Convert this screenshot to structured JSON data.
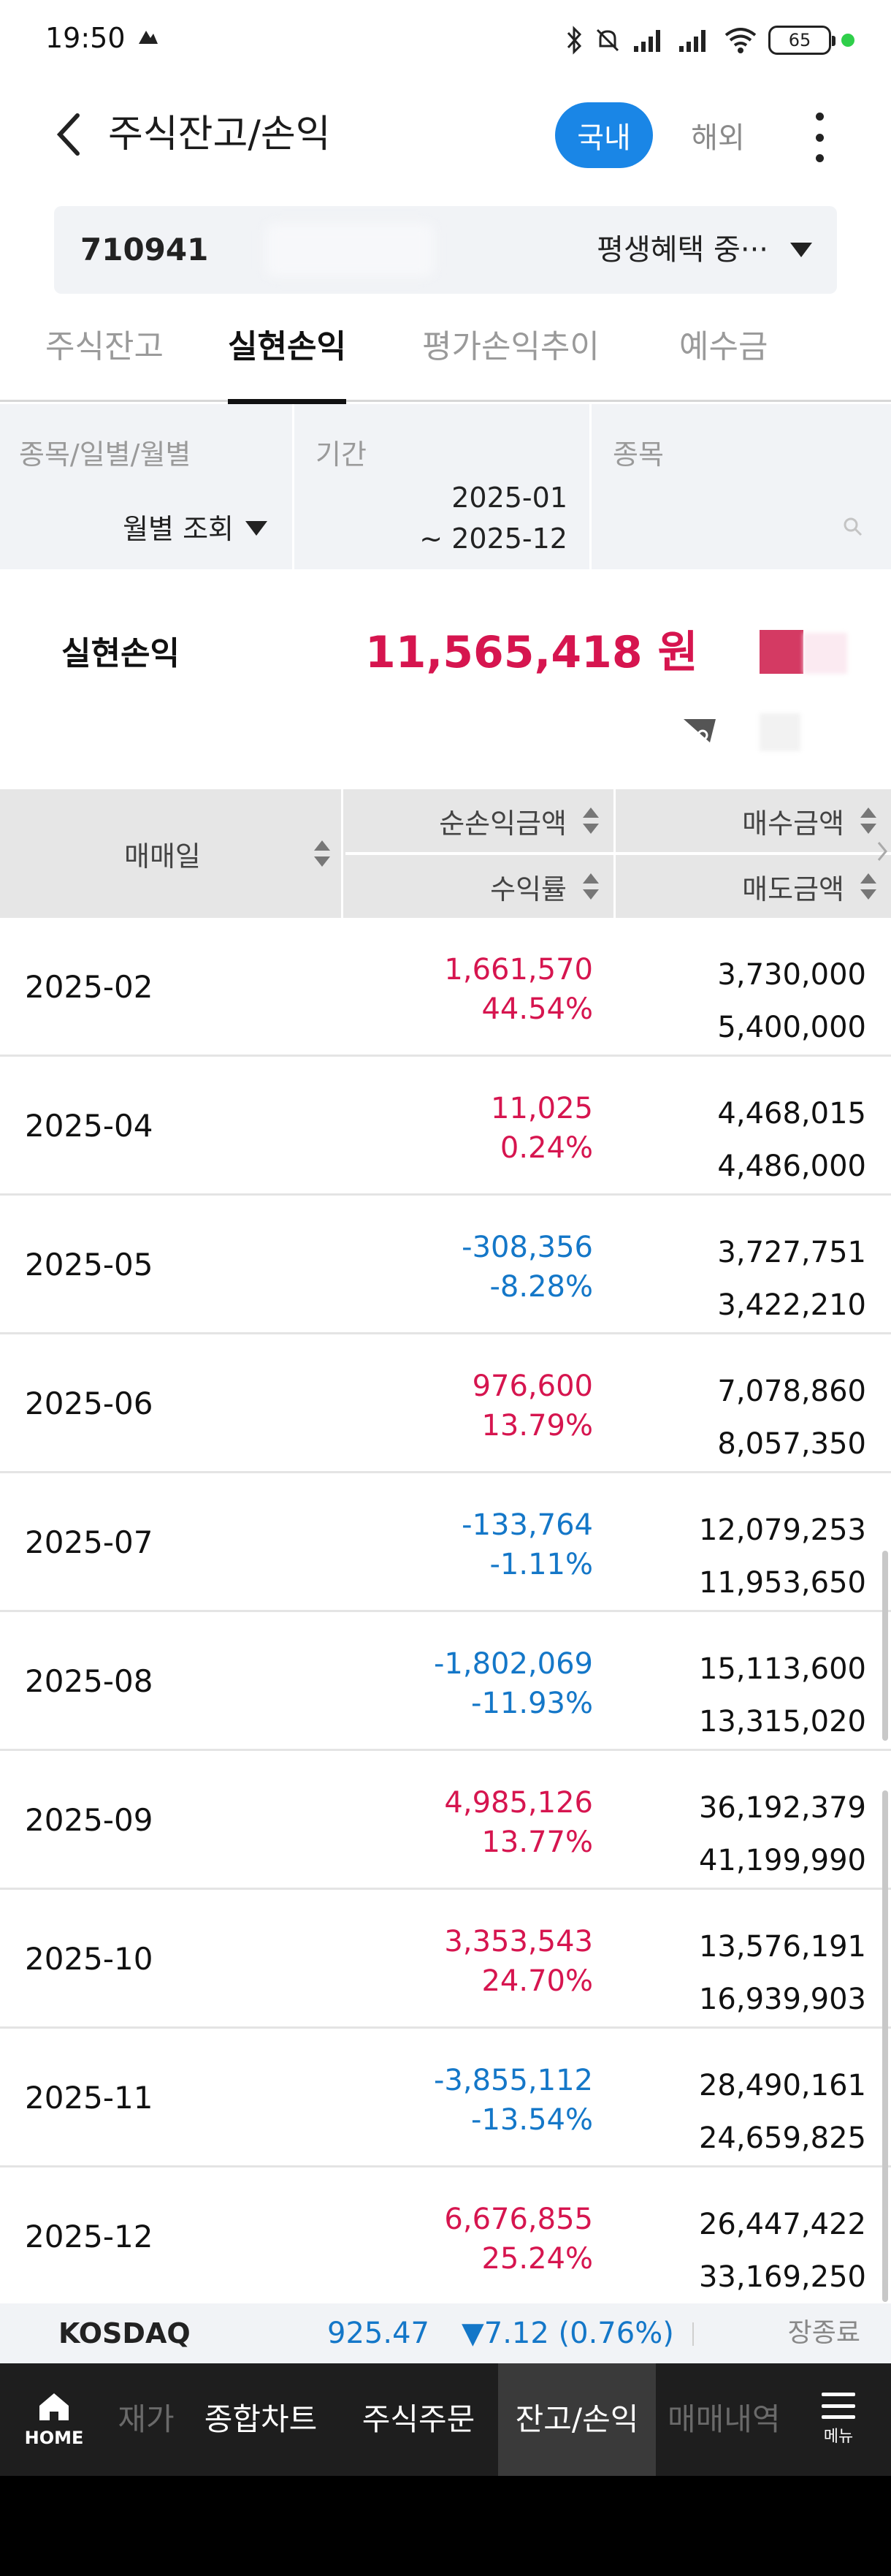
{
  "status_bar": {
    "time": "19:50",
    "battery": "65"
  },
  "header": {
    "title": "주식잔고/손익",
    "tab_domestic": "국내",
    "tab_overseas": "해외"
  },
  "account": {
    "number": "710941",
    "name": "평생혜택 중···"
  },
  "sub_tabs": [
    "주식잔고",
    "실현손익",
    "평가손익추이",
    "예수금"
  ],
  "filters": {
    "type_label": "종목/일별/월별",
    "type_value": "월별 조회",
    "period_label": "기간",
    "period_from": "2025-01",
    "period_to": "~ 2025-12",
    "stock_label": "종목"
  },
  "summary": {
    "label": "실현손익",
    "value": "11,565,418 원"
  },
  "table": {
    "headers": {
      "date": "매매일",
      "net_pl": "순손익금액",
      "return_rate": "수익률",
      "buy_amount": "매수금액",
      "sell_amount": "매도금액"
    },
    "rows": [
      {
        "date": "2025-02",
        "net_pl": "1,661,570",
        "rate": "44.54%",
        "buy": "3,730,000",
        "sell": "5,400,000"
      },
      {
        "date": "2025-04",
        "net_pl": "11,025",
        "rate": "0.24%",
        "buy": "4,468,015",
        "sell": "4,486,000"
      },
      {
        "date": "2025-05",
        "net_pl": "-308,356",
        "rate": "-8.28%",
        "buy": "3,727,751",
        "sell": "3,422,210"
      },
      {
        "date": "2025-06",
        "net_pl": "976,600",
        "rate": "13.79%",
        "buy": "7,078,860",
        "sell": "8,057,350"
      },
      {
        "date": "2025-07",
        "net_pl": "-133,764",
        "rate": "-1.11%",
        "buy": "12,079,253",
        "sell": "11,953,650"
      },
      {
        "date": "2025-08",
        "net_pl": "-1,802,069",
        "rate": "-11.93%",
        "buy": "15,113,600",
        "sell": "13,315,020"
      },
      {
        "date": "2025-09",
        "net_pl": "4,985,126",
        "rate": "13.77%",
        "buy": "36,192,379",
        "sell": "41,199,990"
      },
      {
        "date": "2025-10",
        "net_pl": "3,353,543",
        "rate": "24.70%",
        "buy": "13,576,191",
        "sell": "16,939,903"
      },
      {
        "date": "2025-11",
        "net_pl": "-3,855,112",
        "rate": "-13.54%",
        "buy": "28,490,161",
        "sell": "24,659,825"
      },
      {
        "date": "2025-12",
        "net_pl": "6,676,855",
        "rate": "25.24%",
        "buy": "26,447,422",
        "sell": "33,169,250"
      }
    ]
  },
  "ticker": {
    "name": "KOSDAQ",
    "price": "925.47",
    "change": "▼7.12 (0.76%)",
    "status": "장종료"
  },
  "bottom_nav": {
    "home": "HOME",
    "items": [
      "재가",
      "종합차트",
      "주식주문",
      "잔고/손익",
      "매매내역"
    ],
    "menu": "메뉴"
  },
  "colors": {
    "accent": "#1a86e6",
    "profit": "#d6154f",
    "loss": "#1477c8"
  }
}
